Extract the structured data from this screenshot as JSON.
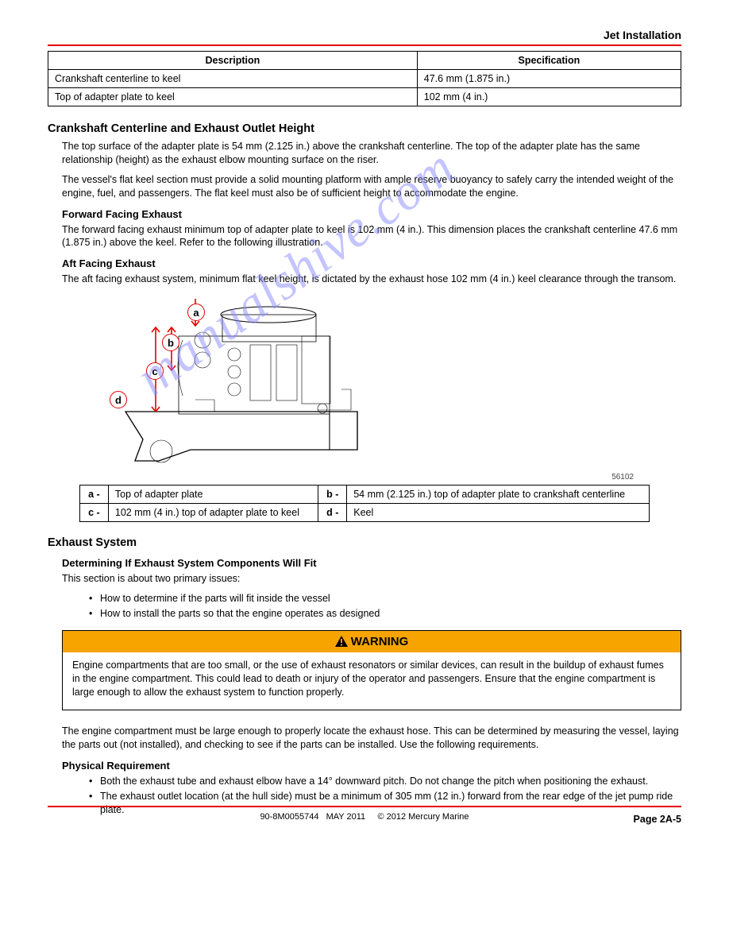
{
  "header": {
    "section_title": "Jet Installation"
  },
  "spec_table": {
    "headers": [
      "Description",
      "Specification"
    ],
    "rows": [
      [
        "Crankshaft centerline to keel",
        "47.6 mm (1.875 in.)"
      ],
      [
        "Top of adapter plate to keel",
        "102 mm (4 in.)"
      ]
    ]
  },
  "cc_section": {
    "title": "Crankshaft Centerline and Exhaust Outlet Height",
    "p1": "The top surface of the adapter plate is 54 mm (2.125 in.) above the crankshaft centerline. The top of the adapter plate has the same relationship (height) as the exhaust elbow mounting surface on the riser.",
    "p2": "The vessel's flat keel section must provide a solid mounting platform with ample reserve buoyancy to safely carry the intended weight of the engine, fuel, and passengers. The flat keel must also be of sufficient height to accommodate the engine.",
    "subheads": {
      "fwd": "Forward Facing Exhaust",
      "fwd_text": "The forward facing exhaust minimum top of adapter plate to keel is 102 mm (4 in.). This dimension places the crankshaft centerline 47.6 mm (1.875 in.) above the keel. Refer to the following illustration.",
      "aft": "Aft Facing Exhaust",
      "aft_text": "The aft facing exhaust system, minimum flat keel height, is dictated by the exhaust hose 102 mm (4 in.) keel clearance through the transom."
    }
  },
  "fig": {
    "caption": "56102",
    "callouts": [
      {
        "id": "a",
        "text": "Top of adapter plate"
      },
      {
        "id": "b",
        "text": "54 mm (2.125 in.) top of adapter plate to crankshaft centerline"
      },
      {
        "id": "c",
        "text": "102 mm (4 in.) top of adapter plate to keel"
      },
      {
        "id": "d",
        "text": "Keel"
      }
    ]
  },
  "exhaust": {
    "title": "Exhaust System",
    "intro_title": "Determining If Exhaust System Components Will Fit",
    "intro_text": "This section is about two primary issues:",
    "bullets": [
      "How to determine if the parts will fit inside the vessel",
      "How to install the parts so that the engine operates as designed"
    ],
    "warning_label": "WARNING",
    "warning_text": "Engine compartments that are too small, or the use of exhaust resonators or similar devices, can result in the buildup of exhaust fumes in the engine compartment. This could lead to death or injury of the operator and passengers. Ensure that the engine compartment is large enough to allow the exhaust system to function properly.",
    "para": "The engine compartment must be large enough to properly locate the exhaust hose. This can be determined by measuring the vessel, laying the parts out (not installed), and checking to see if the parts can be installed. Use the following requirements.",
    "req_title": "Physical Requirement",
    "req_bullets": [
      "Both the exhaust tube and exhaust elbow have a 14° downward pitch. Do not change the pitch when positioning the exhaust.",
      "The exhaust outlet location (at the hull side) must be a minimum of 305 mm (12 in.) forward from the rear edge of the jet pump ride plate."
    ]
  },
  "footer": {
    "docid": "90-8M0055744",
    "date": "MAY 2011",
    "copyright": "© 2012 Mercury Marine",
    "pageno": "Page 2A-5"
  }
}
